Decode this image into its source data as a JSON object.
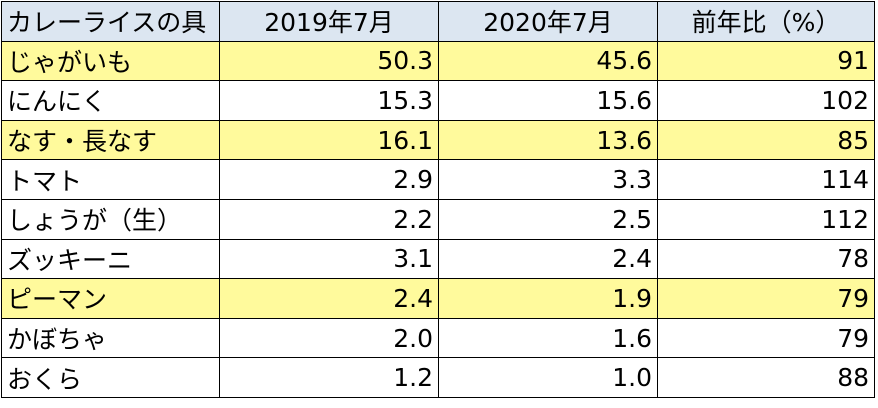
{
  "table": {
    "header": [
      "カレーライスの具",
      "2019年7月",
      "2020年7月",
      "前年比（%）"
    ],
    "rows": [
      [
        "じゃがいも",
        "50.3",
        "45.6",
        "91"
      ],
      [
        "にんにく",
        "15.3",
        "15.6",
        "102"
      ],
      [
        "なす・長なす",
        "16.1",
        "13.6",
        "85"
      ],
      [
        "トマト",
        "2.9",
        "3.3",
        "114"
      ],
      [
        "しょうが（生）",
        "2.2",
        "2.5",
        "112"
      ],
      [
        "ズッキーニ",
        "3.1",
        "2.4",
        "78"
      ],
      [
        "ピーマン",
        "2.4",
        "1.9",
        "79"
      ],
      [
        "かぼちゃ",
        "2.0",
        "1.6",
        "79"
      ],
      [
        "おくら",
        "1.2",
        "1.0",
        "88"
      ]
    ]
  }
}
